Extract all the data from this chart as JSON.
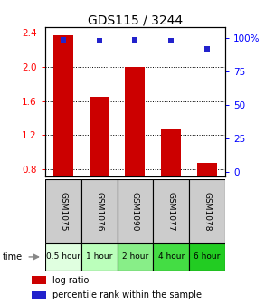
{
  "title": "GDS115 / 3244",
  "samples": [
    "GSM1075",
    "GSM1076",
    "GSM1090",
    "GSM1077",
    "GSM1078"
  ],
  "time_labels": [
    "0.5 hour",
    "1 hour",
    "2 hour",
    "4 hour",
    "6 hour"
  ],
  "log_ratio": [
    2.37,
    1.65,
    2.0,
    1.27,
    0.88
  ],
  "percentile": [
    99,
    98,
    99,
    98,
    92
  ],
  "ylim_left": [
    0.72,
    2.46
  ],
  "ylim_right": [
    -3,
    108
  ],
  "yticks_left": [
    0.8,
    1.2,
    1.6,
    2.0,
    2.4
  ],
  "yticks_right": [
    0,
    25,
    50,
    75,
    100
  ],
  "bar_color": "#cc0000",
  "dot_color": "#2222cc",
  "bar_width": 0.55,
  "time_colors": [
    "#e0ffe0",
    "#bbffbb",
    "#88ee88",
    "#44dd44",
    "#22cc22"
  ],
  "base_value": 0.72,
  "sample_box_color": "#cccccc",
  "title_fontsize": 10,
  "tick_fontsize": 7.5,
  "sample_fontsize": 6.5,
  "time_fontsize": 6.5
}
